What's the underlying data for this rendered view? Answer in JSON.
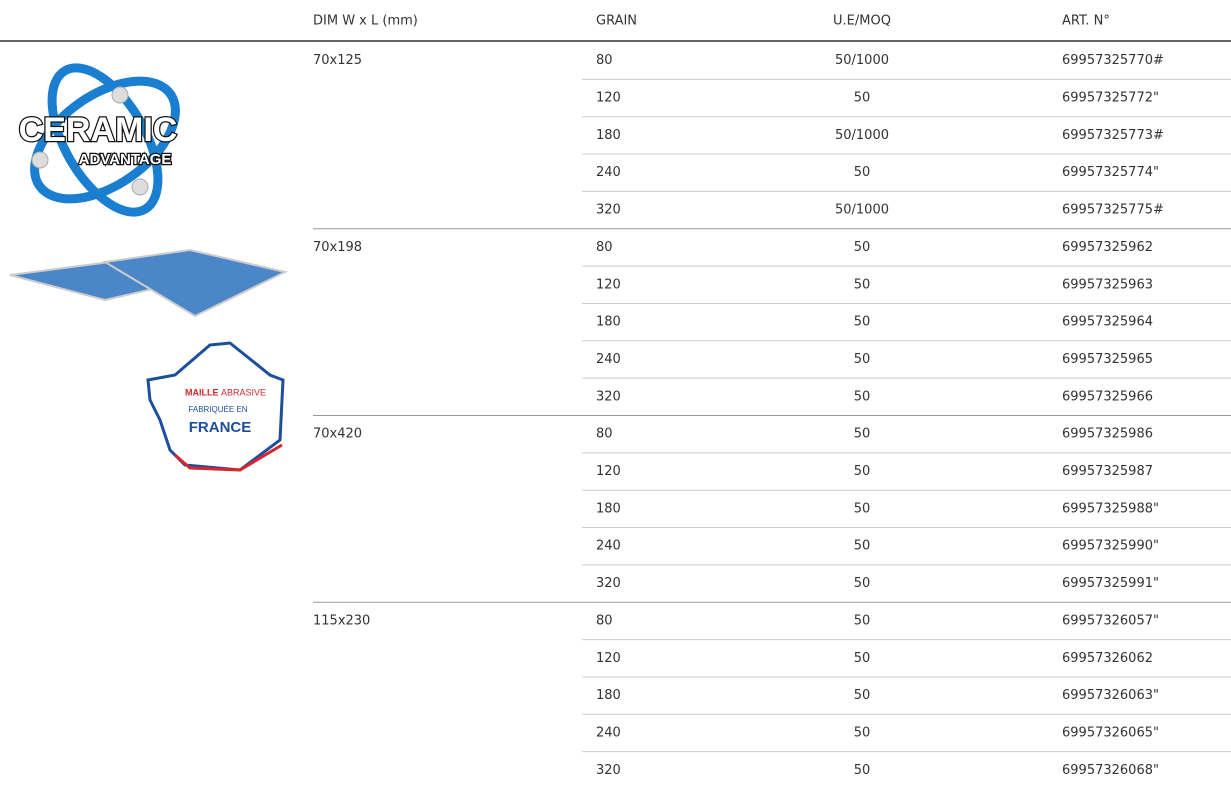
{
  "header": [
    "DIM W x L (mm)",
    "GRAIN",
    "U.E/MOQ",
    "ART. N°"
  ],
  "logo": {
    "line1": "CERAMIC",
    "line2": "ADVANTAGE"
  },
  "badge": {
    "line1a": "MAILLE",
    "line1b": "ABRASIVE",
    "line2": "FABRIQUÉE EN",
    "line3": "FRANCE"
  },
  "groups": [
    {
      "dim": "70x125",
      "rows": [
        [
          "80",
          "50/1000",
          "69957325770#"
        ],
        [
          "120",
          "50",
          "69957325772\""
        ],
        [
          "180",
          "50/1000",
          "69957325773#"
        ],
        [
          "240",
          "50",
          "69957325774\""
        ],
        [
          "320",
          "50/1000",
          "69957325775#"
        ]
      ]
    },
    {
      "dim": "70x198",
      "rows": [
        [
          "80",
          "50",
          "69957325962"
        ],
        [
          "120",
          "50",
          "69957325963"
        ],
        [
          "180",
          "50",
          "69957325964"
        ],
        [
          "240",
          "50",
          "69957325965"
        ],
        [
          "320",
          "50",
          "69957325966"
        ]
      ]
    },
    {
      "dim": "70x420",
      "rows": [
        [
          "80",
          "50",
          "69957325986"
        ],
        [
          "120",
          "50",
          "69957325987"
        ],
        [
          "180",
          "50",
          "69957325988\""
        ],
        [
          "240",
          "50",
          "69957325990\""
        ],
        [
          "320",
          "50",
          "69957325991\""
        ]
      ]
    },
    {
      "dim": "115x230",
      "rows": [
        [
          "80",
          "50",
          "69957326057\""
        ],
        [
          "120",
          "50",
          "69957326062"
        ],
        [
          "180",
          "50",
          "69957326063\""
        ],
        [
          "240",
          "50",
          "69957326065\""
        ],
        [
          "320",
          "50",
          "69957326068\""
        ]
      ]
    }
  ]
}
